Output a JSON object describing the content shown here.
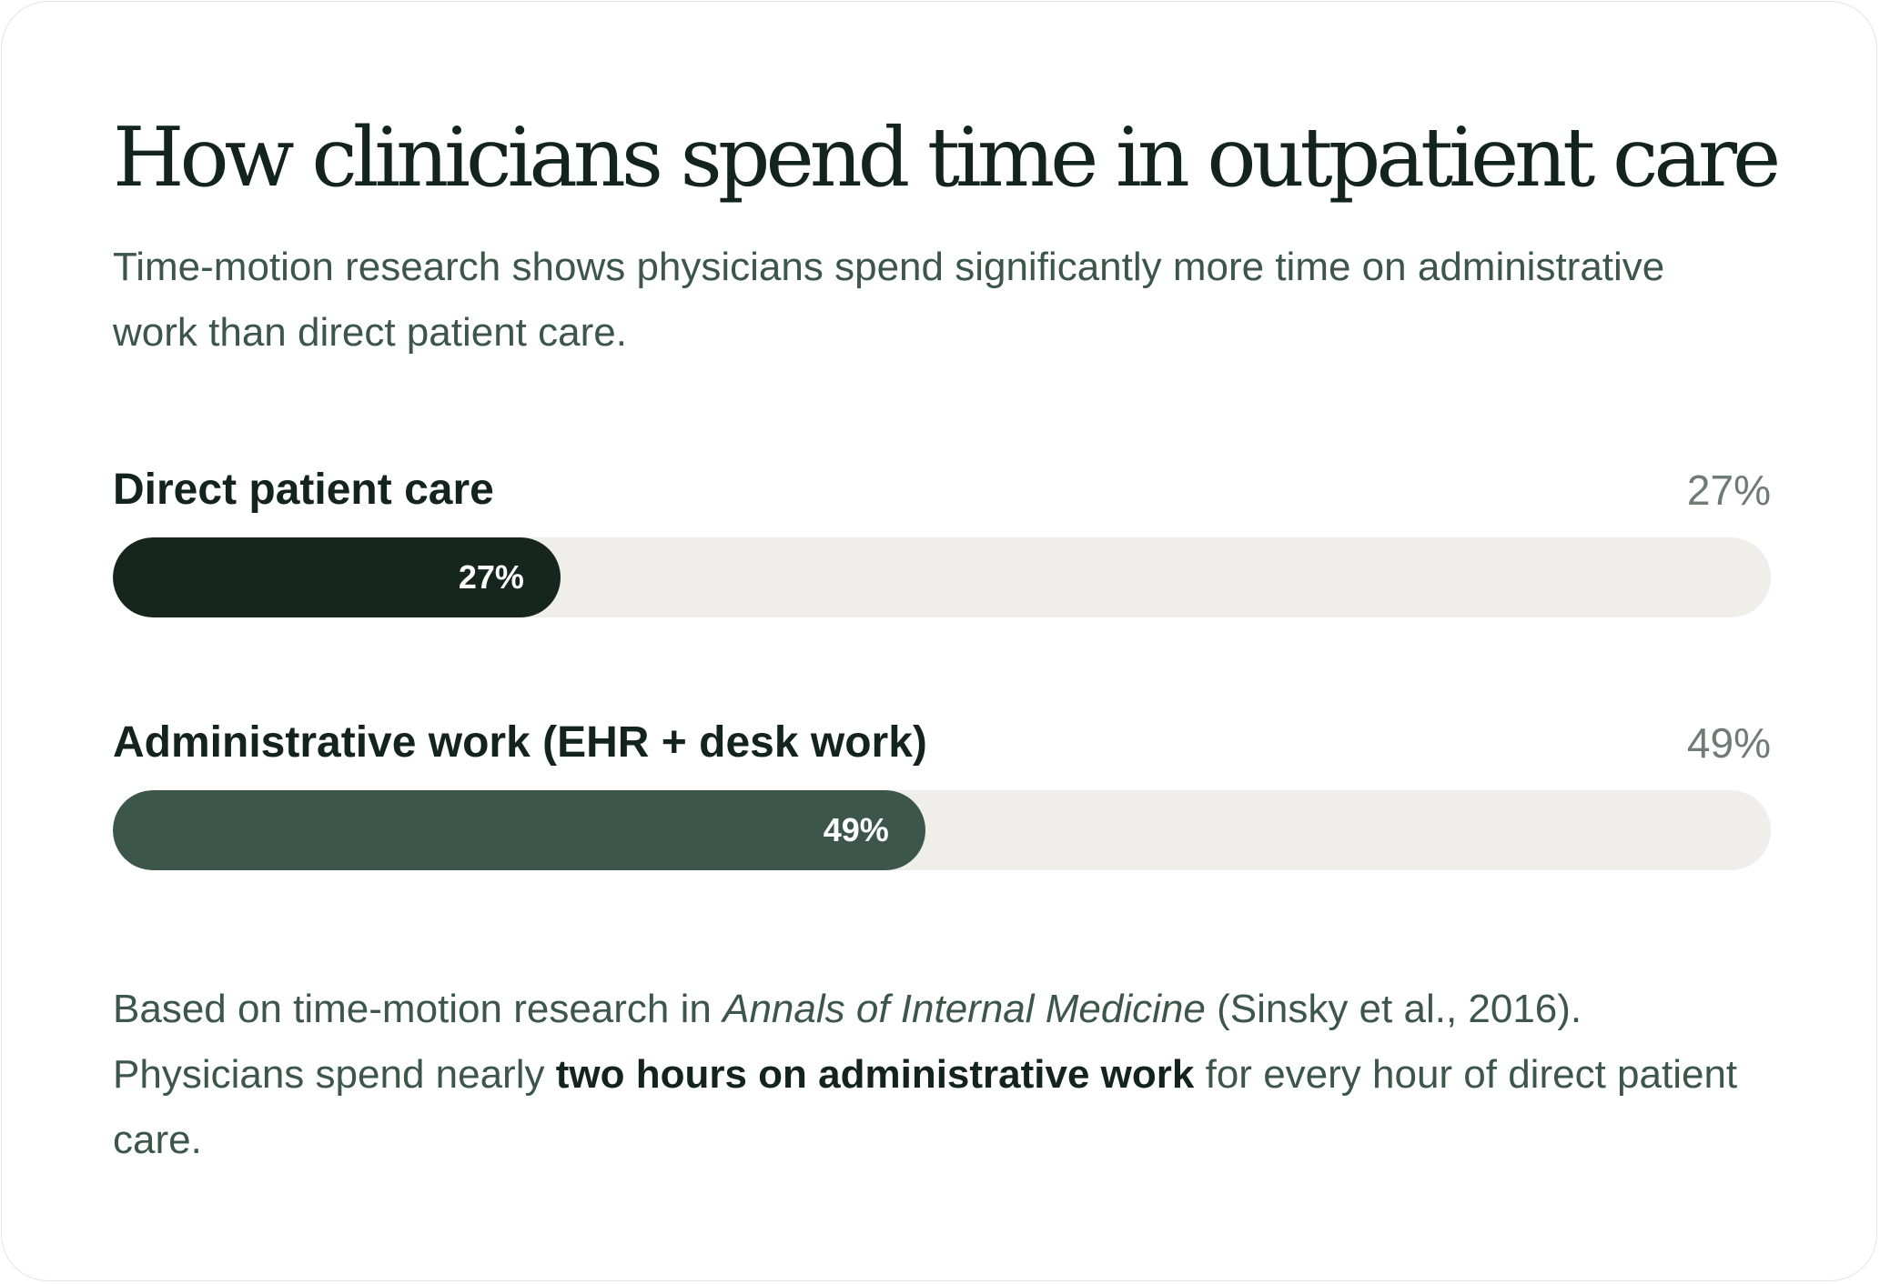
{
  "title": "How clinicians spend time in outpatient care",
  "subtitle": "Time-motion research shows physicians spend significantly more time on administrative work than direct patient care.",
  "colors": {
    "direct": "#16261f",
    "admin": "#3d564b",
    "track": "#efeeea"
  },
  "chart_data": {
    "type": "bar",
    "orientation": "horizontal",
    "unit": "%",
    "range": [
      0,
      100
    ],
    "categories": [
      "Direct patient care",
      "Administrative work (EHR + desk work)"
    ],
    "values": [
      27,
      49
    ],
    "value_labels": [
      "27%",
      "49%"
    ]
  },
  "footnote": {
    "part1": "Based on time-motion research in ",
    "journal": "Annals of Internal Medicine",
    "part2": " (Sinsky et al., 2016). Physicians spend nearly ",
    "emphasis": "two hours on administrative work",
    "part3": " for every hour of direct patient care."
  }
}
